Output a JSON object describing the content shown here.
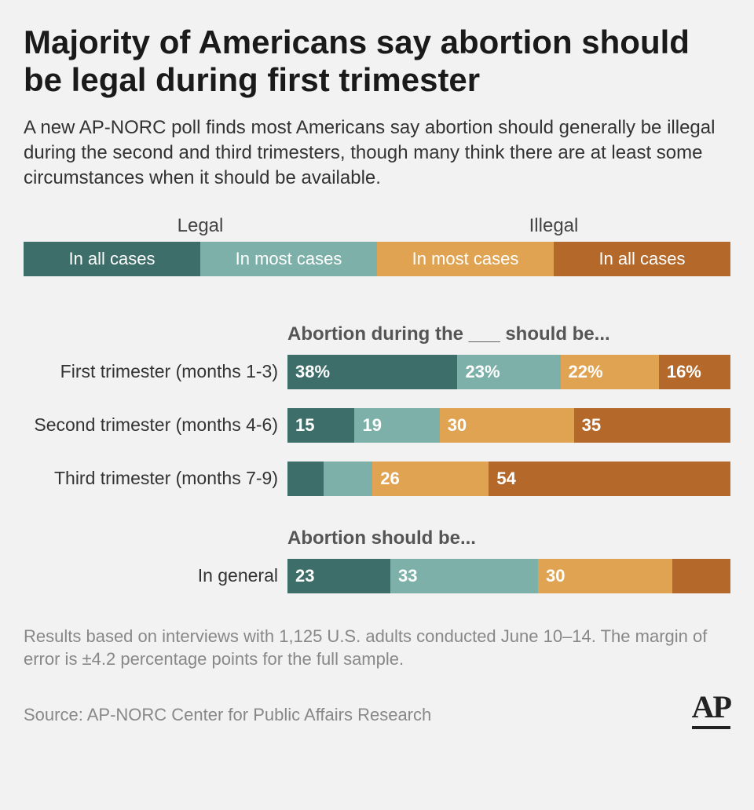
{
  "title": "Majority of Americans say abortion should be legal during first trimester",
  "subtitle": "A new AP-NORC poll finds most Americans say abortion should generally be illegal during the second and third trimesters, though many think there are at least some circumstances when it should be available.",
  "legend": {
    "headers": [
      "Legal",
      "Illegal"
    ],
    "items": [
      {
        "label": "In all cases",
        "color": "#3e6e6a"
      },
      {
        "label": "In most cases",
        "color": "#7cb0a8"
      },
      {
        "label": "In most cases",
        "color": "#e0a352"
      },
      {
        "label": "In all cases",
        "color": "#b4692b"
      }
    ]
  },
  "colors": {
    "legal_all": "#3e6e6a",
    "legal_most": "#7cb0a8",
    "illegal_most": "#e0a352",
    "illegal_all": "#b4692b"
  },
  "chart1": {
    "title": "Abortion during the ___ should be...",
    "rows": [
      {
        "label": "First trimester (months 1-3)",
        "values": [
          38,
          23,
          22,
          16
        ],
        "display": [
          "38%",
          "23%",
          "22%",
          "16%"
        ]
      },
      {
        "label": "Second trimester (months 4-6)",
        "values": [
          15,
          19,
          30,
          35
        ],
        "display": [
          "15",
          "19",
          "30",
          "35"
        ]
      },
      {
        "label": "Third trimester (months 7-9)",
        "values": [
          8,
          11,
          26,
          54
        ],
        "display": [
          "",
          "",
          "26",
          "54"
        ]
      }
    ]
  },
  "chart2": {
    "title": "Abortion should be...",
    "rows": [
      {
        "label": "In general",
        "values": [
          23,
          33,
          30,
          13
        ],
        "display": [
          "23",
          "33",
          "30",
          ""
        ]
      }
    ]
  },
  "footnote": "Results based on interviews with 1,125 U.S. adults conducted June 10–14. The margin of error is ±4.2 percentage points for the full sample.",
  "source": "Source: AP-NORC Center for Public Affairs Research",
  "logo": "AP"
}
